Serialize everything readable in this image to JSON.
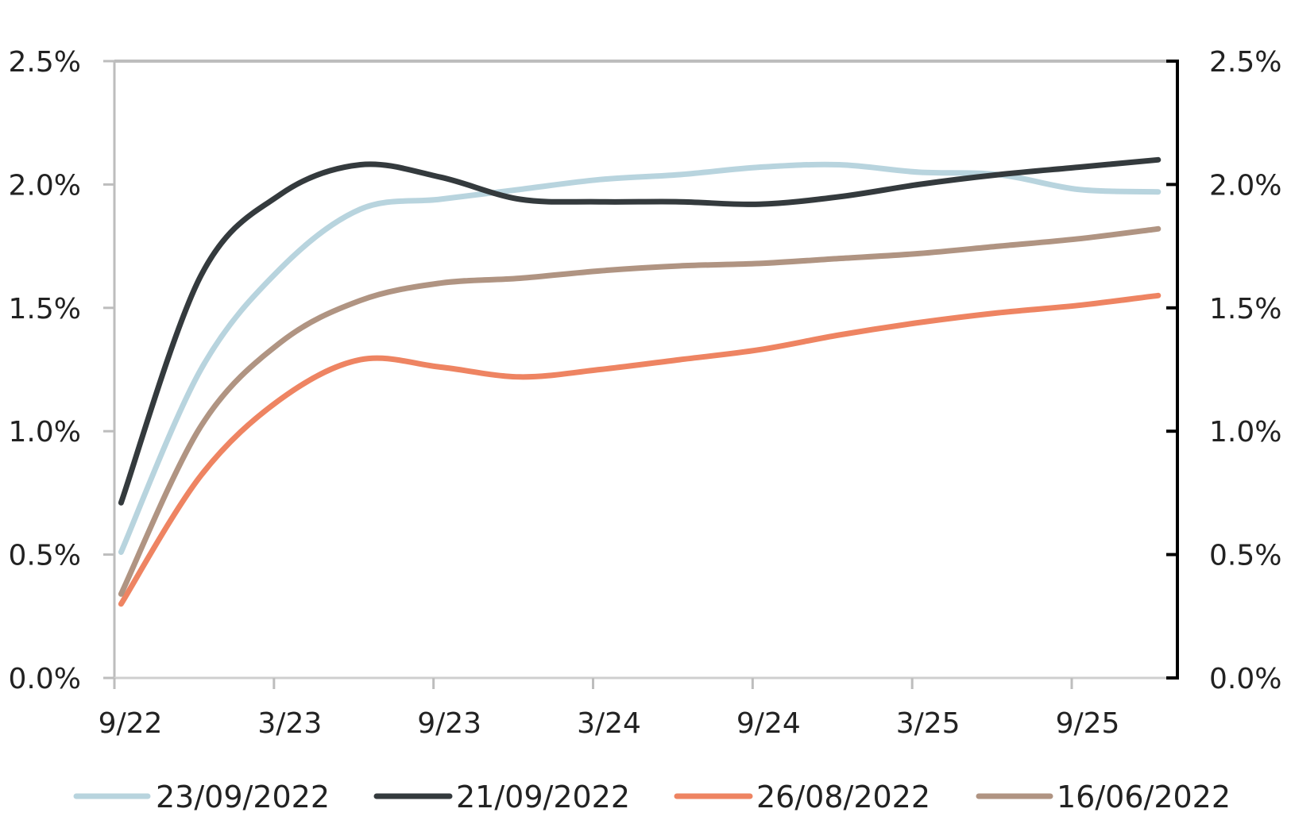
{
  "chart_data": {
    "type": "line",
    "title": "",
    "xlabel": "",
    "ylabel": "",
    "ylim": [
      0,
      2.5
    ],
    "y_ticks": [
      "0.0%",
      "0.5%",
      "1.0%",
      "1.5%",
      "2.0%",
      "2.5%"
    ],
    "y_tick_values": [
      0,
      0.5,
      1.0,
      1.5,
      2.0,
      2.5
    ],
    "secondary_y_ticks": [
      "0.0%",
      "0.5%",
      "1.0%",
      "1.5%",
      "2.0%",
      "2.5%"
    ],
    "x_ticks": [
      "9/22",
      "3/23",
      "9/23",
      "3/24",
      "9/24",
      "3/25",
      "9/25"
    ],
    "grid": false,
    "legend_position": "bottom",
    "x": [
      "9/22",
      "12/22",
      "3/23",
      "6/23",
      "9/23",
      "12/23",
      "3/24",
      "6/24",
      "9/24",
      "12/24",
      "3/25",
      "6/25",
      "9/25",
      "12/25"
    ],
    "series": [
      {
        "name": "23/09/2022",
        "color": "#b8d4de",
        "values": [
          0.51,
          1.25,
          1.66,
          1.9,
          1.94,
          1.98,
          2.02,
          2.04,
          2.07,
          2.08,
          2.05,
          2.04,
          1.98,
          1.97
        ]
      },
      {
        "name": "21/09/2022",
        "color": "#343a3d",
        "values": [
          0.71,
          1.63,
          1.96,
          2.08,
          2.03,
          1.94,
          1.93,
          1.93,
          1.92,
          1.95,
          2.0,
          2.04,
          2.07,
          2.1
        ]
      },
      {
        "name": "26/08/2022",
        "color": "#ee8462",
        "values": [
          0.3,
          0.82,
          1.13,
          1.29,
          1.26,
          1.22,
          1.25,
          1.29,
          1.33,
          1.39,
          1.44,
          1.48,
          1.51,
          1.55
        ]
      },
      {
        "name": "16/06/2022",
        "color": "#b09482",
        "values": [
          0.34,
          1.02,
          1.36,
          1.53,
          1.6,
          1.62,
          1.65,
          1.67,
          1.68,
          1.7,
          1.72,
          1.75,
          1.78,
          1.82
        ]
      }
    ]
  }
}
